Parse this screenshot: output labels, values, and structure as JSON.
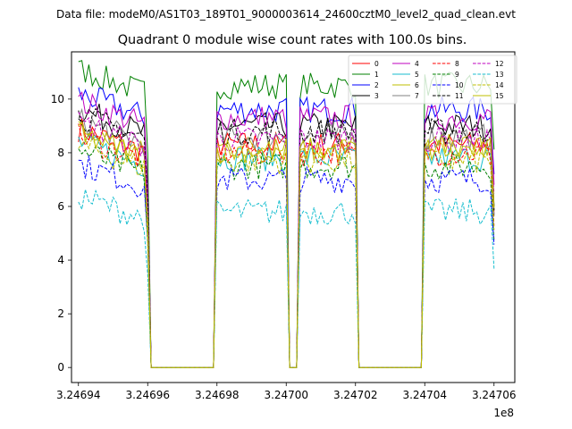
{
  "chart_data": {
    "type": "line",
    "suptitle": "Data file: modeM0/AS1T03_189T01_9000003614_24600cztM0_level2_quad_clean.evt",
    "title": "Quadrant 0 module wise count rates with 100.0s bins.",
    "xlabel": "",
    "ylabel": "",
    "x_offset_label": "1e8",
    "x_tick_labels": [
      "3.24694",
      "3.24696",
      "3.24698",
      "3.24700",
      "3.24702",
      "3.24704",
      "3.24706"
    ],
    "y_tick_labels": [
      "0",
      "2",
      "4",
      "6",
      "8",
      "10"
    ],
    "xlim": [
      324693800,
      324706600
    ],
    "ylim": [
      -0.56,
      11.76
    ],
    "gap_value": 0,
    "segments": [
      {
        "start": 324694000,
        "end": 324696000
      },
      {
        "start": 324698000,
        "end": 324700000
      },
      {
        "start": 324700400,
        "end": 324700600
      },
      {
        "start": 324700700,
        "end": 324702000
      },
      {
        "start": 324704000,
        "end": 324706000
      }
    ],
    "legend": {
      "placement": "upper right",
      "columns": 4
    },
    "series": [
      {
        "name": "0",
        "color": "#ff0000",
        "dash": "solid",
        "level": 8.3
      },
      {
        "name": "1",
        "color": "#008000",
        "dash": "solid",
        "level": 10.5
      },
      {
        "name": "2",
        "color": "#0000ff",
        "dash": "solid",
        "level": 9.6
      },
      {
        "name": "3",
        "color": "#000000",
        "dash": "solid",
        "level": 9.0
      },
      {
        "name": "4",
        "color": "#bf00bf",
        "dash": "solid",
        "level": 9.3
      },
      {
        "name": "5",
        "color": "#17becf",
        "dash": "solid",
        "level": 7.8
      },
      {
        "name": "6",
        "color": "#bfbf00",
        "dash": "solid",
        "level": 8.2
      },
      {
        "name": "7",
        "color": "#808080",
        "dash": "solid",
        "level": 8.6
      },
      {
        "name": "8",
        "color": "#ff0000",
        "dash": "dashed",
        "level": 8.0
      },
      {
        "name": "9",
        "color": "#008000",
        "dash": "dashed",
        "level": 7.5
      },
      {
        "name": "10",
        "color": "#0000ff",
        "dash": "dashed",
        "level": 7.0
      },
      {
        "name": "11",
        "color": "#000000",
        "dash": "dashed",
        "level": 8.8
      },
      {
        "name": "12",
        "color": "#bf00bf",
        "dash": "dashed",
        "level": 8.5
      },
      {
        "name": "13",
        "color": "#17becf",
        "dash": "dashed",
        "level": 5.8
      },
      {
        "name": "14",
        "color": "#bfbf00",
        "dash": "dashed",
        "level": 7.7
      },
      {
        "name": "15",
        "color": "#bfbf00",
        "dash": "solid",
        "level": 8.1
      }
    ]
  }
}
